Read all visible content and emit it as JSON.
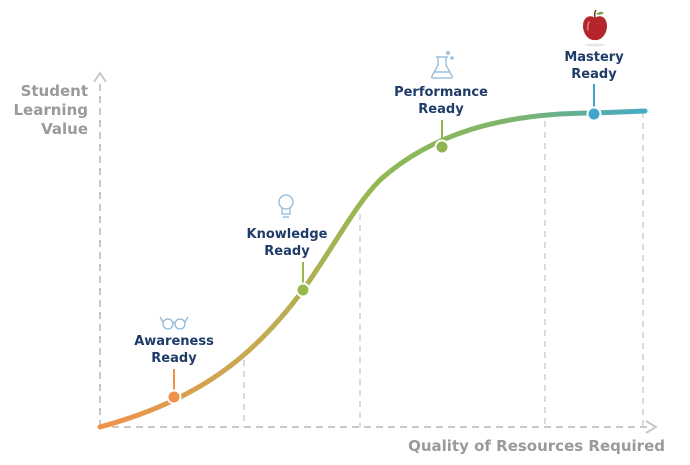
{
  "axes": {
    "y_label_lines": [
      "Student",
      "Learning",
      "Value"
    ],
    "x_label": "Quality of Resources Required"
  },
  "stages": [
    {
      "line1": "Awareness",
      "line2": "Ready",
      "icon": "glasses-icon",
      "color": "#f0914a"
    },
    {
      "line1": "Knowledge",
      "line2": "Ready",
      "icon": "lightbulb-icon",
      "color": "#97b84f"
    },
    {
      "line1": "Performance",
      "line2": "Ready",
      "icon": "flask-icon",
      "color": "#8fb451"
    },
    {
      "line1": "Mastery",
      "line2": "Ready",
      "icon": "apple-icon",
      "color": "#3fa7cc"
    }
  ],
  "colors": {
    "curve_start": "#f0914a",
    "curve_mid": "#92b851",
    "curve_end": "#45aac6",
    "axis": "#c8c8c8",
    "label_text": "#1f3b68",
    "axis_text": "#9a9a9a",
    "apple": "#b5262c"
  }
}
